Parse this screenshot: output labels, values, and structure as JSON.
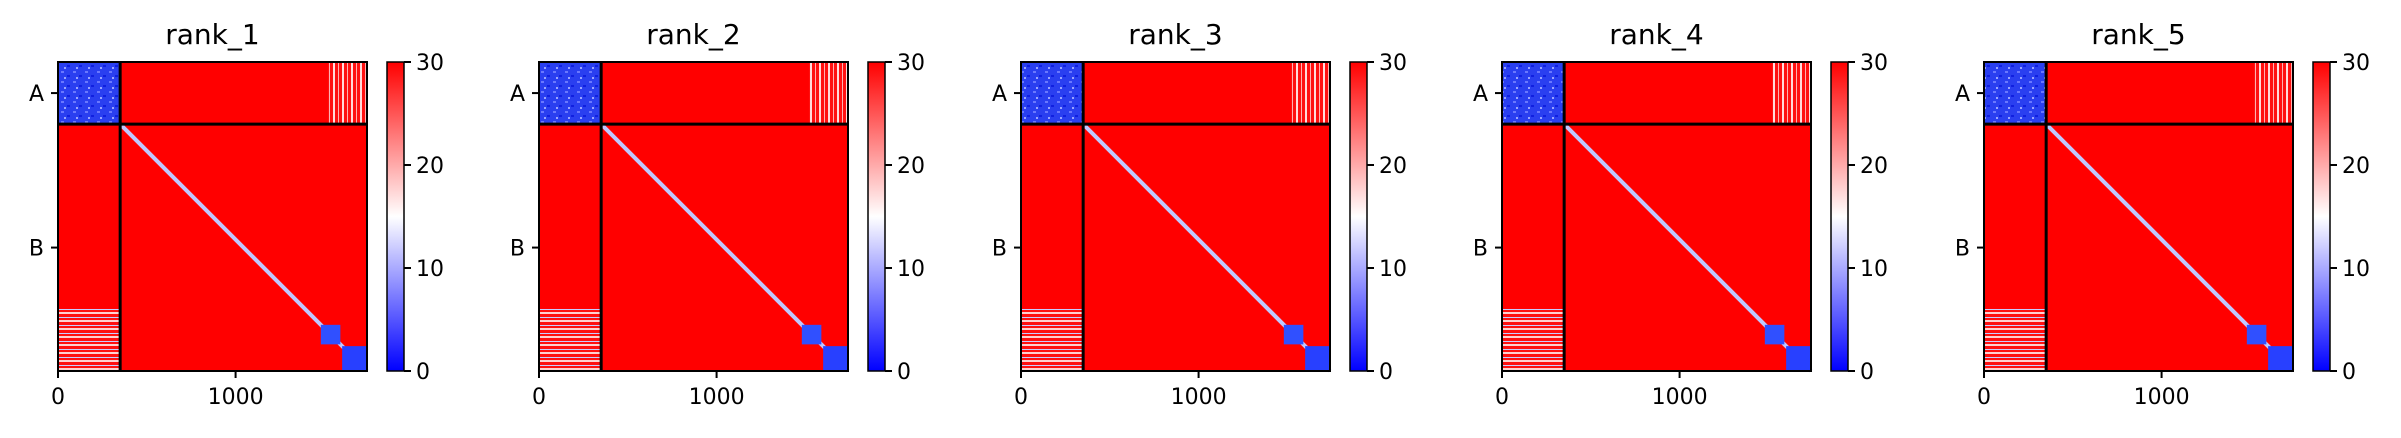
{
  "chart_data": [
    {
      "type": "heatmap",
      "title": "rank_1",
      "chain_labels": [
        "A",
        "B"
      ],
      "chain_boundary": 350,
      "x_max": 1740,
      "xticks": [
        "0",
        "1000"
      ],
      "colorbar": {
        "min": 0,
        "max": 30,
        "ticks": [
          "0",
          "10",
          "20",
          "30"
        ],
        "colormap": [
          "#0000ff",
          "#ffffff",
          "#ff0000"
        ]
      }
    },
    {
      "type": "heatmap",
      "title": "rank_2",
      "chain_labels": [
        "A",
        "B"
      ],
      "chain_boundary": 350,
      "x_max": 1740,
      "xticks": [
        "0",
        "1000"
      ],
      "colorbar": {
        "min": 0,
        "max": 30,
        "ticks": [
          "0",
          "10",
          "20",
          "30"
        ],
        "colormap": [
          "#0000ff",
          "#ffffff",
          "#ff0000"
        ]
      }
    },
    {
      "type": "heatmap",
      "title": "rank_3",
      "chain_labels": [
        "A",
        "B"
      ],
      "chain_boundary": 350,
      "x_max": 1740,
      "xticks": [
        "0",
        "1000"
      ],
      "colorbar": {
        "min": 0,
        "max": 30,
        "ticks": [
          "0",
          "10",
          "20",
          "30"
        ],
        "colormap": [
          "#0000ff",
          "#ffffff",
          "#ff0000"
        ]
      }
    },
    {
      "type": "heatmap",
      "title": "rank_4",
      "chain_labels": [
        "A",
        "B"
      ],
      "chain_boundary": 350,
      "x_max": 1740,
      "xticks": [
        "0",
        "1000"
      ],
      "colorbar": {
        "min": 0,
        "max": 30,
        "ticks": [
          "0",
          "10",
          "20",
          "30"
        ],
        "colormap": [
          "#0000ff",
          "#ffffff",
          "#ff0000"
        ]
      }
    },
    {
      "type": "heatmap",
      "title": "rank_5",
      "chain_labels": [
        "A",
        "B"
      ],
      "chain_boundary": 350,
      "x_max": 1740,
      "xticks": [
        "0",
        "1000"
      ],
      "colorbar": {
        "min": 0,
        "max": 30,
        "ticks": [
          "0",
          "10",
          "20",
          "30"
        ],
        "colormap": [
          "#0000ff",
          "#ffffff",
          "#ff0000"
        ]
      }
    }
  ]
}
